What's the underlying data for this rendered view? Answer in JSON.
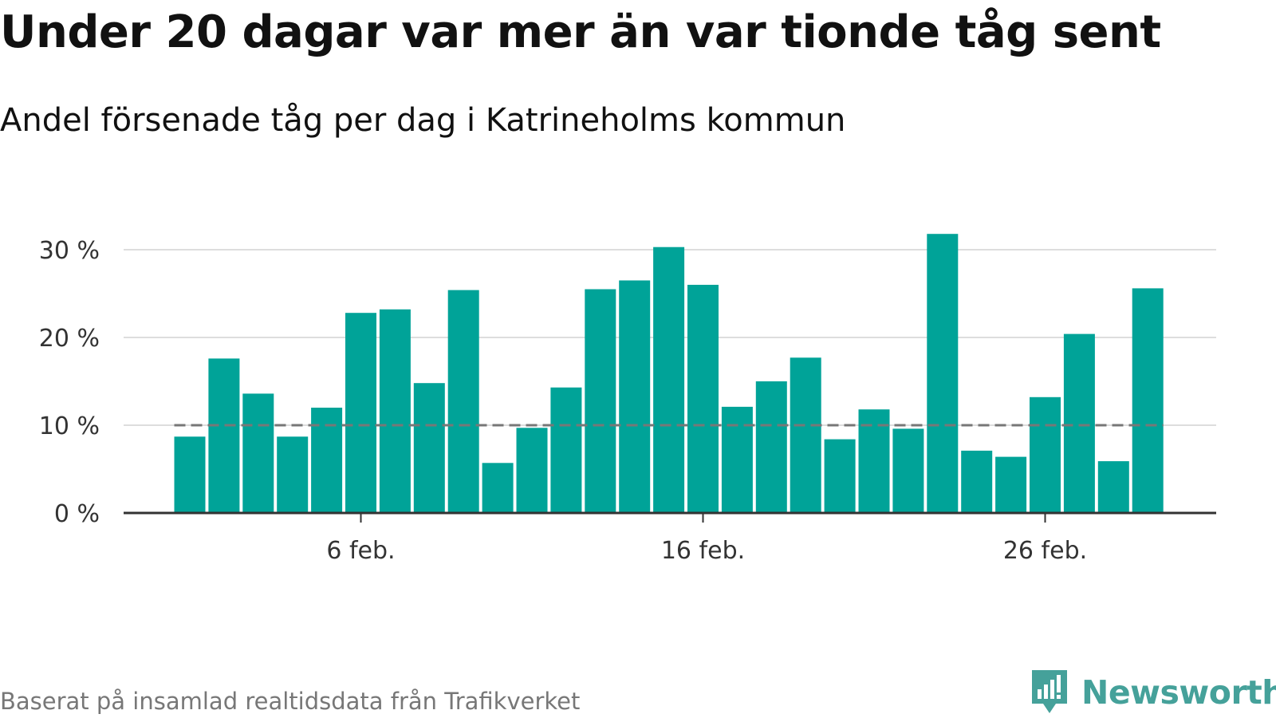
{
  "title": "Under 20 dagar var mer än var tionde tåg sent",
  "subtitle": "Andel försenade tåg per dag i Katrineholms kommun",
  "footer": "Baserat på insamlad realtidsdata från Trafikverket",
  "brand": "Newsworthy",
  "colors": {
    "bar": "#00a398",
    "reference": "#777777",
    "grid": "#dddddd",
    "axis": "#333333",
    "brand": "#45a19a"
  },
  "chart_data": {
    "type": "bar",
    "x": [
      "1 feb.",
      "2 feb.",
      "3 feb.",
      "4 feb.",
      "5 feb.",
      "6 feb.",
      "7 feb.",
      "8 feb.",
      "9 feb.",
      "10 feb.",
      "11 feb.",
      "12 feb.",
      "13 feb.",
      "14 feb.",
      "15 feb.",
      "16 feb.",
      "17 feb.",
      "18 feb.",
      "19 feb.",
      "20 feb.",
      "21 feb.",
      "22 feb.",
      "23 feb.",
      "24 feb.",
      "25 feb.",
      "26 feb.",
      "27 feb.",
      "28 feb.",
      "29 feb."
    ],
    "values": [
      8.7,
      17.6,
      13.6,
      8.7,
      12.0,
      22.8,
      23.2,
      14.8,
      25.4,
      5.7,
      9.7,
      14.3,
      25.5,
      26.5,
      30.3,
      26.0,
      12.1,
      15.0,
      17.7,
      8.4,
      11.8,
      9.6,
      31.8,
      7.1,
      6.4,
      13.2,
      20.4,
      5.9,
      25.6
    ],
    "reference_line": 10,
    "ylim": [
      0,
      33
    ],
    "y_ticks": [
      0,
      10,
      20,
      30
    ],
    "y_tick_labels": [
      "0 %",
      "10 %",
      "20 %",
      "30 %"
    ],
    "x_ticks": [
      "6 feb.",
      "16 feb.",
      "26 feb."
    ],
    "grid": true
  }
}
